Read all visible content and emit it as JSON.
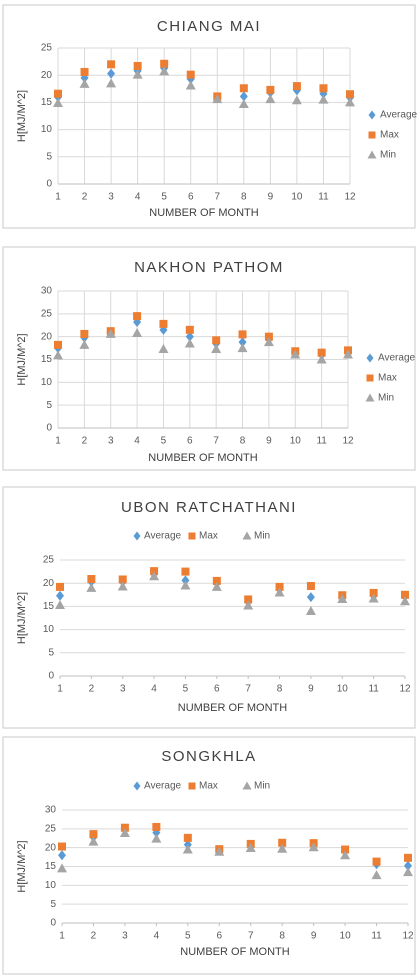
{
  "chart_data": [
    {
      "type": "scatter",
      "title": "CHIANG MAI",
      "x_label": "NUMBER OF MONTH",
      "y_label": "H[MJ/M^2]",
      "legend": "right",
      "grid": "both",
      "x": [
        1,
        2,
        3,
        4,
        5,
        6,
        7,
        8,
        9,
        10,
        11,
        12
      ],
      "xlim": [
        1,
        12
      ],
      "xticks": [
        1,
        2,
        3,
        4,
        5,
        6,
        7,
        8,
        9,
        10,
        11,
        12
      ],
      "ylim": [
        0,
        25
      ],
      "yticks": [
        0,
        5,
        10,
        15,
        20,
        25
      ],
      "series": [
        {
          "name": "Average",
          "color": "#5b9bd5",
          "marker": "diamond",
          "values": [
            16,
            19.5,
            20.3,
            20.8,
            21.3,
            19.3,
            15.8,
            16.1,
            16.8,
            17.2,
            16.6,
            15.9
          ]
        },
        {
          "name": "Max",
          "color": "#ed7d31",
          "marker": "square",
          "values": [
            16.6,
            20.6,
            22,
            21.7,
            22.1,
            20.1,
            16.1,
            17.6,
            17.3,
            18,
            17.6,
            16.5
          ]
        },
        {
          "name": "Min",
          "color": "#a5a5a5",
          "marker": "triangle",
          "values": [
            14.9,
            18.4,
            18.5,
            20.1,
            20.7,
            18.1,
            15.6,
            14.7,
            15.6,
            15.4,
            15.5,
            15
          ]
        }
      ]
    },
    {
      "type": "scatter",
      "title": "NAKHON PATHOM",
      "x_label": "NUMBER OF MONTH",
      "y_label": "H[MJ/M^2]",
      "legend": "right",
      "grid": "both",
      "x": [
        1,
        2,
        3,
        4,
        5,
        6,
        7,
        8,
        9,
        10,
        11,
        12
      ],
      "xlim": [
        1,
        12
      ],
      "xticks": [
        1,
        2,
        3,
        4,
        5,
        6,
        7,
        8,
        9,
        10,
        11,
        12
      ],
      "ylim": [
        0,
        30
      ],
      "yticks": [
        0,
        5,
        10,
        15,
        20,
        25,
        30
      ],
      "series": [
        {
          "name": "Average",
          "color": "#5b9bd5",
          "marker": "diamond",
          "values": [
            17.5,
            19.8,
            21,
            23.2,
            21.5,
            20,
            18.5,
            18.8,
            19.5,
            16.5,
            16,
            16.5
          ]
        },
        {
          "name": "Max",
          "color": "#ed7d31",
          "marker": "square",
          "values": [
            18.2,
            20.6,
            21.2,
            24.5,
            22.8,
            21.5,
            19.2,
            20.5,
            20,
            16.8,
            16.5,
            17
          ]
        },
        {
          "name": "Min",
          "color": "#a5a5a5",
          "marker": "triangle",
          "values": [
            15.9,
            18.2,
            20.6,
            20.8,
            17.3,
            18.5,
            17.3,
            17.5,
            18.8,
            16.1,
            15,
            16.1
          ]
        }
      ]
    },
    {
      "type": "scatter",
      "title": "UBON RATCHATHANI",
      "x_label": "NUMBER OF MONTH",
      "y_label": "H[MJ/M^2]",
      "legend": "top",
      "grid": "y",
      "x": [
        1,
        2,
        3,
        4,
        5,
        6,
        7,
        8,
        9,
        10,
        11,
        12
      ],
      "xlim": [
        1,
        12
      ],
      "xticks": [
        1,
        2,
        3,
        4,
        5,
        6,
        7,
        8,
        9,
        10,
        11,
        12
      ],
      "ylim": [
        0,
        25
      ],
      "yticks": [
        0,
        5,
        10,
        15,
        20,
        25
      ],
      "series": [
        {
          "name": "Average",
          "color": "#5b9bd5",
          "marker": "diamond",
          "values": [
            17.3,
            20.3,
            20.3,
            22,
            20.6,
            20,
            16,
            18.7,
            17,
            17,
            17.3,
            17.2
          ]
        },
        {
          "name": "Max",
          "color": "#ed7d31",
          "marker": "square",
          "values": [
            19.2,
            20.9,
            20.8,
            22.6,
            22.5,
            20.5,
            16.5,
            19.2,
            19.4,
            17.4,
            17.9,
            17.5
          ]
        },
        {
          "name": "Min",
          "color": "#a5a5a5",
          "marker": "triangle",
          "values": [
            15.3,
            19,
            19.3,
            21.5,
            19.5,
            19.2,
            15.2,
            18,
            14,
            16.6,
            16.7,
            16.1
          ]
        }
      ]
    },
    {
      "type": "scatter",
      "title": "SONGKHLA",
      "x_label": "NUMBER OF MONTH",
      "y_label": "H[MJ/M^2]",
      "legend": "top",
      "grid": "y",
      "x": [
        1,
        2,
        3,
        4,
        5,
        6,
        7,
        8,
        9,
        10,
        11,
        12
      ],
      "xlim": [
        1,
        12
      ],
      "xticks": [
        1,
        2,
        3,
        4,
        5,
        6,
        7,
        8,
        9,
        10,
        11,
        12
      ],
      "ylim": [
        0,
        30
      ],
      "yticks": [
        0,
        5,
        10,
        15,
        20,
        25,
        30
      ],
      "series": [
        {
          "name": "Average",
          "color": "#5b9bd5",
          "marker": "diamond",
          "values": [
            18,
            22.8,
            24.8,
            24,
            20.8,
            19.3,
            20.5,
            20.8,
            20.8,
            19.1,
            15.6,
            15.2
          ]
        },
        {
          "name": "Max",
          "color": "#ed7d31",
          "marker": "square",
          "values": [
            20.3,
            23.6,
            25.3,
            25.5,
            22.6,
            19.6,
            21,
            21.3,
            21.2,
            19.5,
            16.3,
            17.3
          ]
        },
        {
          "name": "Min",
          "color": "#a5a5a5",
          "marker": "triangle",
          "values": [
            14.5,
            21.6,
            23.9,
            22.4,
            19.5,
            18.9,
            19.9,
            19.7,
            20.1,
            18,
            12.7,
            13.5
          ]
        }
      ]
    }
  ]
}
